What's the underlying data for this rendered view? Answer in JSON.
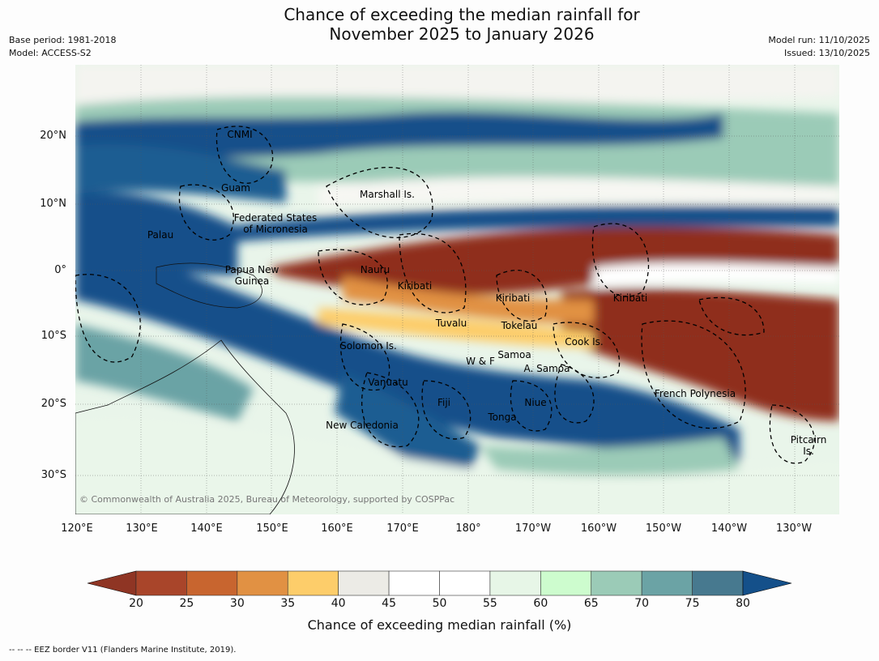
{
  "header": {
    "title_line1": "Chance of exceeding the median rainfall for",
    "title_line2": "November 2025 to January 2026",
    "base_period": "Base period: 1981-2018",
    "model": "Model: ACCESS-S2",
    "model_run": "Model run: 11/10/2025",
    "issued": "Issued: 13/10/2025"
  },
  "map": {
    "latitude_labels": [
      "20°N",
      "10°N",
      "0°",
      "10°S",
      "20°S",
      "30°S"
    ],
    "longitude_labels": [
      "120°E",
      "130°E",
      "140°E",
      "150°E",
      "160°E",
      "170°E",
      "180°",
      "170°W",
      "160°W",
      "150°W",
      "140°W",
      "130°W"
    ],
    "region_labels": [
      {
        "text": "CNMI"
      },
      {
        "text": "Guam"
      },
      {
        "text": "Marshall Is."
      },
      {
        "text": "Federated States"
      },
      {
        "text": "of Micronesia"
      },
      {
        "text": "Palau"
      },
      {
        "text": "Papua New"
      },
      {
        "text": "Guinea"
      },
      {
        "text": "Nauru"
      },
      {
        "text": "Kiribati"
      },
      {
        "text": "Kiribati"
      },
      {
        "text": "Kiribati"
      },
      {
        "text": "Tuvalu"
      },
      {
        "text": "Tokelau"
      },
      {
        "text": "Cook Is."
      },
      {
        "text": "Solomon Is."
      },
      {
        "text": "Samoa"
      },
      {
        "text": "W & F"
      },
      {
        "text": "A. Samoa"
      },
      {
        "text": "Vanuatu"
      },
      {
        "text": "Fiji"
      },
      {
        "text": "Niue"
      },
      {
        "text": "French Polynesia"
      },
      {
        "text": "Tonga"
      },
      {
        "text": "New Caledonia"
      },
      {
        "text": "Pitcairn"
      },
      {
        "text": "Is."
      }
    ],
    "copyright": "© Commonwealth of Australia 2025, Bureau of Meteorology, supported by COSPPac",
    "colors": {
      "very_dry": "#8f2f1c",
      "dry": "#b04a26",
      "neutral": "#ffffff",
      "wet": "#14508a"
    }
  },
  "colorbar": {
    "ticks": [
      "20",
      "25",
      "30",
      "35",
      "40",
      "45",
      "50",
      "55",
      "60",
      "65",
      "70",
      "75",
      "80"
    ],
    "colors": [
      "#a9452a",
      "#c8652f",
      "#e19143",
      "#fdcd6a",
      "#ecebe6",
      "#ffffff",
      "#ffffff",
      "#e7f6e7",
      "#cdfcce",
      "#9bcbb7",
      "#6ba3a5",
      "#47798f"
    ],
    "low_extend_color": "#8f3524",
    "high_extend_color": "#14508a",
    "label": "Chance of exceeding median rainfall (%)"
  },
  "footnote": "--  --  -- EEZ border V11 (Flanders Marine Institute, 2019)."
}
